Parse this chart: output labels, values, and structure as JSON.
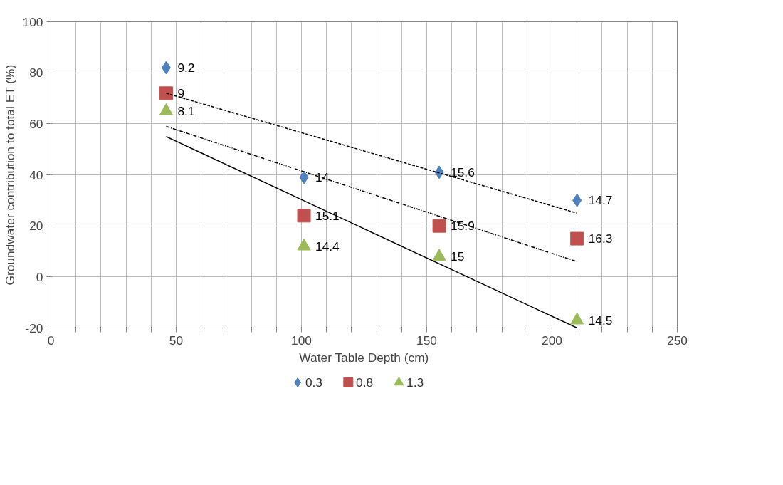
{
  "chart_data": {
    "type": "scatter",
    "xlabel": "Water Table Depth (cm)",
    "ylabel": "Groundwater contribution to total ET (%)",
    "xlim": [
      0,
      250
    ],
    "ylim": [
      -20,
      100
    ],
    "xticks": [
      0,
      {
        "value": 10,
        "label": null
      },
      {
        "value": 20,
        "label": null
      },
      {
        "value": 30,
        "label": null
      },
      {
        "value": 40,
        "label": null
      },
      50,
      {
        "value": 60,
        "label": null
      },
      {
        "value": 70,
        "label": null
      },
      {
        "value": 80,
        "label": null
      },
      {
        "value": 90,
        "label": null
      },
      100,
      {
        "value": 110,
        "label": null
      },
      {
        "value": 120,
        "label": null
      },
      {
        "value": 130,
        "label": null
      },
      {
        "value": 140,
        "label": null
      },
      150,
      {
        "value": 160,
        "label": null
      },
      {
        "value": 170,
        "label": null
      },
      {
        "value": 180,
        "label": null
      },
      {
        "value": 190,
        "label": null
      },
      200,
      {
        "value": 210,
        "label": null
      },
      {
        "value": 220,
        "label": null
      },
      {
        "value": 230,
        "label": null
      },
      {
        "value": 240,
        "label": null
      },
      250
    ],
    "yticks": [
      -20,
      0,
      20,
      40,
      60,
      80,
      100
    ],
    "grid": true,
    "legend": "bottom",
    "series": [
      {
        "name": "0.3",
        "marker": "diamond",
        "color": "#4f81bd",
        "x": [
          46,
          101,
          155,
          210
        ],
        "values": [
          82,
          39,
          41,
          30
        ]
      },
      {
        "name": "0.8",
        "marker": "square",
        "color": "#c0504d",
        "x": [
          46,
          101,
          155,
          210
        ],
        "values": [
          72,
          24,
          20,
          15
        ]
      },
      {
        "name": "1.3",
        "marker": "triangle",
        "color": "#9bbb59",
        "x": [
          46,
          101,
          155,
          210
        ],
        "values": [
          65,
          12,
          8,
          -17
        ]
      },
      {
        "type": "line",
        "line_style": "dotted",
        "color": "#000000",
        "x": [
          46,
          210
        ],
        "values": [
          72,
          25
        ]
      },
      {
        "type": "line",
        "line_style": "dashed",
        "color": "#000000",
        "x": [
          46,
          210
        ],
        "values": [
          59,
          6
        ]
      },
      {
        "type": "line",
        "line_style": "solid",
        "color": "#000000",
        "x": [
          46,
          210
        ],
        "values": [
          55,
          -20
        ]
      }
    ],
    "annotations": [
      {
        "text": "9.2",
        "x": 46,
        "y": 82
      },
      {
        "text": "14",
        "x": 101,
        "y": 39
      },
      {
        "text": "15.6",
        "x": 155,
        "y": 41
      },
      {
        "text": "14.7",
        "x": 210,
        "y": 30
      },
      {
        "text": "9",
        "x": 46,
        "y": 72
      },
      {
        "text": "15.1",
        "x": 101,
        "y": 24
      },
      {
        "text": "15.9",
        "x": 155,
        "y": 20
      },
      {
        "text": "16.3",
        "x": 210,
        "y": 15
      },
      {
        "text": "8.1",
        "x": 46,
        "y": 65
      },
      {
        "text": "14.4",
        "x": 101,
        "y": 12
      },
      {
        "text": "15",
        "x": 155,
        "y": 8
      },
      {
        "text": "14.5",
        "x": 210,
        "y": -17
      }
    ]
  }
}
